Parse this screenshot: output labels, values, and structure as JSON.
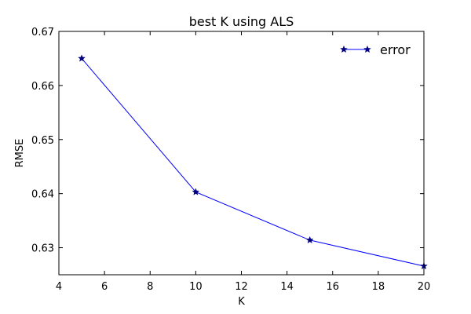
{
  "chart_data": {
    "type": "line",
    "title": "best K using ALS",
    "xlabel": "K",
    "ylabel": "RMSE",
    "xlim": [
      4,
      20
    ],
    "ylim": [
      0.625,
      0.67
    ],
    "x_ticks": [
      4,
      6,
      8,
      10,
      12,
      14,
      16,
      18,
      20
    ],
    "y_ticks": [
      0.63,
      0.64,
      0.65,
      0.66,
      0.67
    ],
    "x_tick_labels": [
      "4",
      "6",
      "8",
      "10",
      "12",
      "14",
      "16",
      "18",
      "20"
    ],
    "y_tick_labels": [
      "0.63",
      "0.64",
      "0.65",
      "0.66",
      "0.67"
    ],
    "grid": false,
    "legend_position": "top-right",
    "series": [
      {
        "name": "error",
        "color": "#0000ff",
        "marker_color": "#000080",
        "marker": "star",
        "points": [
          {
            "x": 5,
            "y": 0.665
          },
          {
            "x": 10,
            "y": 0.6403
          },
          {
            "x": 15,
            "y": 0.6314
          },
          {
            "x": 20,
            "y": 0.6266
          }
        ]
      }
    ]
  }
}
